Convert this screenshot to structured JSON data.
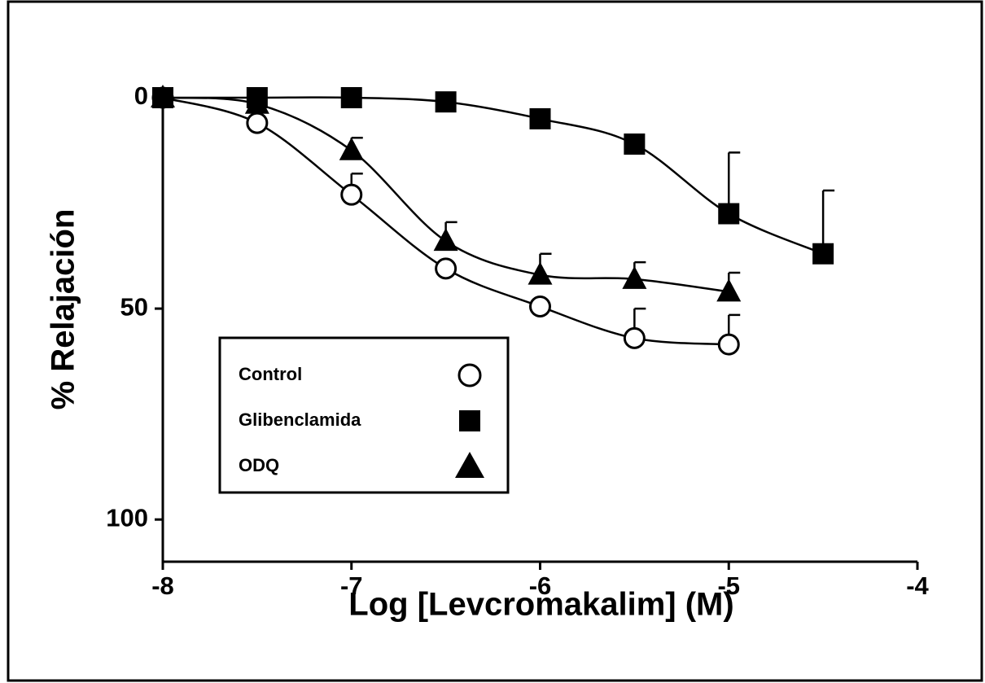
{
  "chart_data": {
    "type": "line",
    "xlabel": "Log [Levcromakalim] (M)",
    "ylabel": "% Relajación",
    "xlim": [
      -8,
      -4
    ],
    "xticks": [
      -8,
      -7,
      -6,
      -5,
      -4
    ],
    "ylim": [
      110,
      0
    ],
    "yticks": [
      0,
      50,
      100
    ],
    "legend": "lower left",
    "series": [
      {
        "name": "Control",
        "color": "#000000",
        "marker": "circle",
        "x": [
          -8,
          -7.5,
          -7,
          -6.5,
          -6,
          -5.5,
          -5
        ],
        "values": [
          0,
          6,
          23,
          40.5,
          49.5,
          57,
          58.5
        ],
        "errors": [
          null,
          null,
          5,
          null,
          null,
          7,
          7
        ]
      },
      {
        "name": "Glibenclamida",
        "color": "#000000",
        "marker": "square",
        "x": [
          -8,
          -7.5,
          -7,
          -6.5,
          -6,
          -5.5,
          -5,
          -4.5
        ],
        "values": [
          0,
          0,
          0,
          1,
          5,
          11,
          27.5,
          37
        ],
        "errors": [
          null,
          null,
          null,
          null,
          null,
          null,
          14.5,
          15
        ]
      },
      {
        "name": "ODQ",
        "color": "#000000",
        "marker": "triangle",
        "x": [
          -8,
          -7.5,
          -7,
          -6.5,
          -6,
          -5.5,
          -5
        ],
        "values": [
          0,
          1.5,
          12.5,
          34,
          42,
          43,
          46
        ],
        "errors": [
          null,
          null,
          3,
          4.5,
          5,
          4,
          4.5
        ]
      }
    ]
  }
}
